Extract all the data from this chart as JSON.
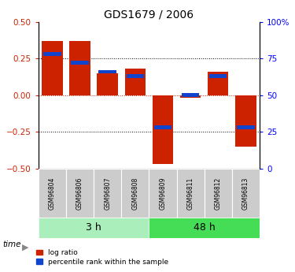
{
  "title": "GDS1679 / 2006",
  "samples": [
    "GSM96804",
    "GSM96806",
    "GSM96807",
    "GSM96808",
    "GSM96809",
    "GSM96811",
    "GSM96812",
    "GSM96813"
  ],
  "log_ratios": [
    0.37,
    0.37,
    0.15,
    0.18,
    -0.47,
    -0.02,
    0.16,
    -0.35
  ],
  "percentile_ranks": [
    0.78,
    0.72,
    0.66,
    0.63,
    0.28,
    0.5,
    0.63,
    0.28
  ],
  "groups": [
    {
      "label": "3 h",
      "start": 0,
      "end": 4
    },
    {
      "label": "48 h",
      "start": 4,
      "end": 8
    }
  ],
  "ylim": [
    -0.5,
    0.5
  ],
  "y_ticks_left": [
    -0.5,
    -0.25,
    0.0,
    0.25,
    0.5
  ],
  "y_ticks_right": [
    0,
    25,
    50,
    75,
    100
  ],
  "bar_width": 0.75,
  "red_color": "#cc2200",
  "blue_color": "#1144cc",
  "group_colors": [
    "#aaeebb",
    "#44dd55"
  ],
  "sample_box_color": "#cccccc",
  "legend_red": "log ratio",
  "legend_blue": "percentile rank within the sample",
  "time_label": "time",
  "zero_line_color": "#cc2200"
}
